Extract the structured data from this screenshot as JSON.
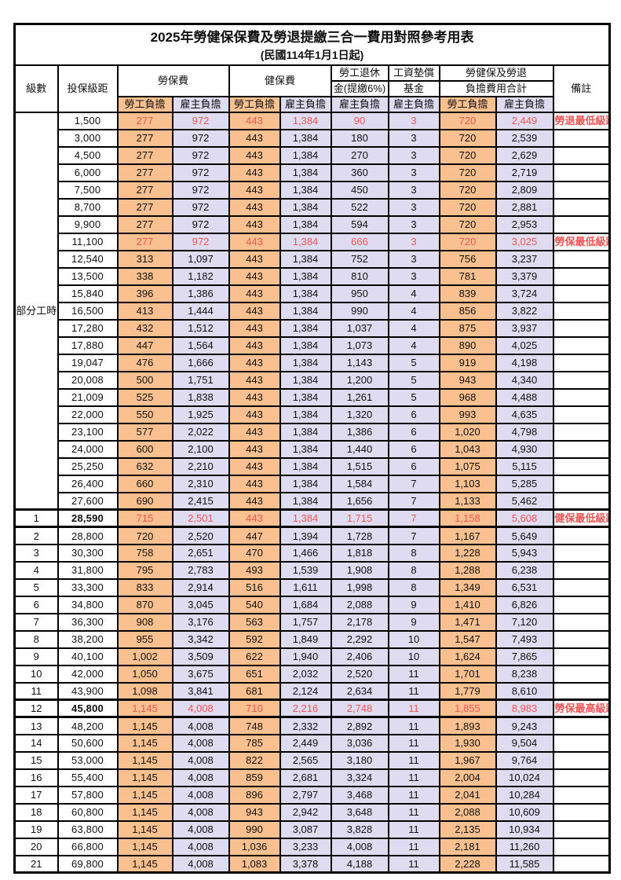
{
  "title": "2025年勞健保保費及勞退提繳三合一費用對照參考用表",
  "subtitle": "(民國114年1月1日起)",
  "colors": {
    "employee_bg": "#FAC090",
    "employer_bg": "#DFDBF0",
    "highlight_text": "#F25555",
    "grid": "#000000"
  },
  "header": {
    "level": "級數",
    "bracket": "投保級距",
    "labor_fee": "勞保費",
    "health_fee": "健保費",
    "pension_line1": "勞工退休",
    "pension_line2": "金(提繳6%)",
    "wage_fund_line1": "工資墊償",
    "wage_fund_line2": "基金",
    "total_line1": "勞健保及勞退",
    "total_line2": "負擔費用合計",
    "remark": "備註",
    "employee_share": "勞工負擔",
    "employer_share": "雇主負擔"
  },
  "part_time": {
    "label": "部分工時",
    "row_span": 23
  },
  "column_share_types": [
    "emp",
    "er",
    "emp",
    "er",
    "er",
    "er",
    "emp",
    "er"
  ],
  "rows": [
    {
      "lv": "",
      "amt": "1,500",
      "c": [
        "277",
        "972",
        "443",
        "1,384",
        "90",
        "3",
        "720",
        "2,449"
      ],
      "note": "勞退最低級距",
      "hl": true,
      "em": false
    },
    {
      "lv": "",
      "amt": "3,000",
      "c": [
        "277",
        "972",
        "443",
        "1,384",
        "180",
        "3",
        "720",
        "2,539"
      ],
      "note": "",
      "hl": false,
      "em": false
    },
    {
      "lv": "",
      "amt": "4,500",
      "c": [
        "277",
        "972",
        "443",
        "1,384",
        "270",
        "3",
        "720",
        "2,629"
      ],
      "note": "",
      "hl": false,
      "em": false
    },
    {
      "lv": "",
      "amt": "6,000",
      "c": [
        "277",
        "972",
        "443",
        "1,384",
        "360",
        "3",
        "720",
        "2,719"
      ],
      "note": "",
      "hl": false,
      "em": false
    },
    {
      "lv": "",
      "amt": "7,500",
      "c": [
        "277",
        "972",
        "443",
        "1,384",
        "450",
        "3",
        "720",
        "2,809"
      ],
      "note": "",
      "hl": false,
      "em": false
    },
    {
      "lv": "",
      "amt": "8,700",
      "c": [
        "277",
        "972",
        "443",
        "1,384",
        "522",
        "3",
        "720",
        "2,881"
      ],
      "note": "",
      "hl": false,
      "em": false
    },
    {
      "lv": "",
      "amt": "9,900",
      "c": [
        "277",
        "972",
        "443",
        "1,384",
        "594",
        "3",
        "720",
        "2,953"
      ],
      "note": "",
      "hl": false,
      "em": false
    },
    {
      "lv": "",
      "amt": "11,100",
      "c": [
        "277",
        "972",
        "443",
        "1,384",
        "666",
        "3",
        "720",
        "3,025"
      ],
      "note": "勞保最低級距",
      "hl": true,
      "em": false
    },
    {
      "lv": "",
      "amt": "12,540",
      "c": [
        "313",
        "1,097",
        "443",
        "1,384",
        "752",
        "3",
        "756",
        "3,237"
      ],
      "note": "",
      "hl": false,
      "em": false
    },
    {
      "lv": "",
      "amt": "13,500",
      "c": [
        "338",
        "1,182",
        "443",
        "1,384",
        "810",
        "3",
        "781",
        "3,379"
      ],
      "note": "",
      "hl": false,
      "em": false
    },
    {
      "lv": "",
      "amt": "15,840",
      "c": [
        "396",
        "1,386",
        "443",
        "1,384",
        "950",
        "4",
        "839",
        "3,724"
      ],
      "note": "",
      "hl": false,
      "em": false
    },
    {
      "lv": "",
      "amt": "16,500",
      "c": [
        "413",
        "1,444",
        "443",
        "1,384",
        "990",
        "4",
        "856",
        "3,822"
      ],
      "note": "",
      "hl": false,
      "em": false
    },
    {
      "lv": "",
      "amt": "17,280",
      "c": [
        "432",
        "1,512",
        "443",
        "1,384",
        "1,037",
        "4",
        "875",
        "3,937"
      ],
      "note": "",
      "hl": false,
      "em": false
    },
    {
      "lv": "",
      "amt": "17,880",
      "c": [
        "447",
        "1,564",
        "443",
        "1,384",
        "1,073",
        "4",
        "890",
        "4,025"
      ],
      "note": "",
      "hl": false,
      "em": false
    },
    {
      "lv": "",
      "amt": "19,047",
      "c": [
        "476",
        "1,666",
        "443",
        "1,384",
        "1,143",
        "5",
        "919",
        "4,198"
      ],
      "note": "",
      "hl": false,
      "em": false
    },
    {
      "lv": "",
      "amt": "20,008",
      "c": [
        "500",
        "1,751",
        "443",
        "1,384",
        "1,200",
        "5",
        "943",
        "4,340"
      ],
      "note": "",
      "hl": false,
      "em": false
    },
    {
      "lv": "",
      "amt": "21,009",
      "c": [
        "525",
        "1,838",
        "443",
        "1,384",
        "1,261",
        "5",
        "968",
        "4,488"
      ],
      "note": "",
      "hl": false,
      "em": false
    },
    {
      "lv": "",
      "amt": "22,000",
      "c": [
        "550",
        "1,925",
        "443",
        "1,384",
        "1,320",
        "6",
        "993",
        "4,635"
      ],
      "note": "",
      "hl": false,
      "em": false
    },
    {
      "lv": "",
      "amt": "23,100",
      "c": [
        "577",
        "2,022",
        "443",
        "1,384",
        "1,386",
        "6",
        "1,020",
        "4,798"
      ],
      "note": "",
      "hl": false,
      "em": false
    },
    {
      "lv": "",
      "amt": "24,000",
      "c": [
        "600",
        "2,100",
        "443",
        "1,384",
        "1,440",
        "6",
        "1,043",
        "4,930"
      ],
      "note": "",
      "hl": false,
      "em": false
    },
    {
      "lv": "",
      "amt": "25,250",
      "c": [
        "632",
        "2,210",
        "443",
        "1,384",
        "1,515",
        "6",
        "1,075",
        "5,115"
      ],
      "note": "",
      "hl": false,
      "em": false
    },
    {
      "lv": "",
      "amt": "26,400",
      "c": [
        "660",
        "2,310",
        "443",
        "1,384",
        "1,584",
        "7",
        "1,103",
        "5,285"
      ],
      "note": "",
      "hl": false,
      "em": false
    },
    {
      "lv": "",
      "amt": "27,600",
      "c": [
        "690",
        "2,415",
        "443",
        "1,384",
        "1,656",
        "7",
        "1,133",
        "5,462"
      ],
      "note": "",
      "hl": false,
      "em": false
    },
    {
      "lv": "1",
      "amt": "28,590",
      "c": [
        "715",
        "2,501",
        "443",
        "1,384",
        "1,715",
        "7",
        "1,158",
        "5,608"
      ],
      "note": "健保最低級距",
      "hl": true,
      "em": true
    },
    {
      "lv": "2",
      "amt": "28,800",
      "c": [
        "720",
        "2,520",
        "447",
        "1,394",
        "1,728",
        "7",
        "1,167",
        "5,649"
      ],
      "note": "",
      "hl": false,
      "em": false
    },
    {
      "lv": "3",
      "amt": "30,300",
      "c": [
        "758",
        "2,651",
        "470",
        "1,466",
        "1,818",
        "8",
        "1,228",
        "5,943"
      ],
      "note": "",
      "hl": false,
      "em": false
    },
    {
      "lv": "4",
      "amt": "31,800",
      "c": [
        "795",
        "2,783",
        "493",
        "1,539",
        "1,908",
        "8",
        "1,288",
        "6,238"
      ],
      "note": "",
      "hl": false,
      "em": false
    },
    {
      "lv": "5",
      "amt": "33,300",
      "c": [
        "833",
        "2,914",
        "516",
        "1,611",
        "1,998",
        "8",
        "1,349",
        "6,531"
      ],
      "note": "",
      "hl": false,
      "em": false
    },
    {
      "lv": "6",
      "amt": "34,800",
      "c": [
        "870",
        "3,045",
        "540",
        "1,684",
        "2,088",
        "9",
        "1,410",
        "6,826"
      ],
      "note": "",
      "hl": false,
      "em": false
    },
    {
      "lv": "7",
      "amt": "36,300",
      "c": [
        "908",
        "3,176",
        "563",
        "1,757",
        "2,178",
        "9",
        "1,471",
        "7,120"
      ],
      "note": "",
      "hl": false,
      "em": false
    },
    {
      "lv": "8",
      "amt": "38,200",
      "c": [
        "955",
        "3,342",
        "592",
        "1,849",
        "2,292",
        "10",
        "1,547",
        "7,493"
      ],
      "note": "",
      "hl": false,
      "em": false
    },
    {
      "lv": "9",
      "amt": "40,100",
      "c": [
        "1,002",
        "3,509",
        "622",
        "1,940",
        "2,406",
        "10",
        "1,624",
        "7,865"
      ],
      "note": "",
      "hl": false,
      "em": false
    },
    {
      "lv": "10",
      "amt": "42,000",
      "c": [
        "1,050",
        "3,675",
        "651",
        "2,032",
        "2,520",
        "11",
        "1,701",
        "8,238"
      ],
      "note": "",
      "hl": false,
      "em": false
    },
    {
      "lv": "11",
      "amt": "43,900",
      "c": [
        "1,098",
        "3,841",
        "681",
        "2,124",
        "2,634",
        "11",
        "1,779",
        "8,610"
      ],
      "note": "",
      "hl": false,
      "em": false
    },
    {
      "lv": "12",
      "amt": "45,800",
      "c": [
        "1,145",
        "4,008",
        "710",
        "2,216",
        "2,748",
        "11",
        "1,855",
        "8,983"
      ],
      "note": "勞保最高級距",
      "hl": true,
      "em": true
    },
    {
      "lv": "13",
      "amt": "48,200",
      "c": [
        "1,145",
        "4,008",
        "748",
        "2,332",
        "2,892",
        "11",
        "1,893",
        "9,243"
      ],
      "note": "",
      "hl": false,
      "em": false
    },
    {
      "lv": "14",
      "amt": "50,600",
      "c": [
        "1,145",
        "4,008",
        "785",
        "2,449",
        "3,036",
        "11",
        "1,930",
        "9,504"
      ],
      "note": "",
      "hl": false,
      "em": false
    },
    {
      "lv": "15",
      "amt": "53,000",
      "c": [
        "1,145",
        "4,008",
        "822",
        "2,565",
        "3,180",
        "11",
        "1,967",
        "9,764"
      ],
      "note": "",
      "hl": false,
      "em": false
    },
    {
      "lv": "16",
      "amt": "55,400",
      "c": [
        "1,145",
        "4,008",
        "859",
        "2,681",
        "3,324",
        "11",
        "2,004",
        "10,024"
      ],
      "note": "",
      "hl": false,
      "em": false
    },
    {
      "lv": "17",
      "amt": "57,800",
      "c": [
        "1,145",
        "4,008",
        "896",
        "2,797",
        "3,468",
        "11",
        "2,041",
        "10,284"
      ],
      "note": "",
      "hl": false,
      "em": false
    },
    {
      "lv": "18",
      "amt": "60,800",
      "c": [
        "1,145",
        "4,008",
        "943",
        "2,942",
        "3,648",
        "11",
        "2,088",
        "10,609"
      ],
      "note": "",
      "hl": false,
      "em": false
    },
    {
      "lv": "19",
      "amt": "63,800",
      "c": [
        "1,145",
        "4,008",
        "990",
        "3,087",
        "3,828",
        "11",
        "2,135",
        "10,934"
      ],
      "note": "",
      "hl": false,
      "em": false
    },
    {
      "lv": "20",
      "amt": "66,800",
      "c": [
        "1,145",
        "4,008",
        "1,036",
        "3,233",
        "4,008",
        "11",
        "2,181",
        "11,260"
      ],
      "note": "",
      "hl": false,
      "em": false
    },
    {
      "lv": "21",
      "amt": "69,800",
      "c": [
        "1,145",
        "4,008",
        "1,083",
        "3,378",
        "4,188",
        "11",
        "2,228",
        "11,585"
      ],
      "note": "",
      "hl": false,
      "em": false
    }
  ]
}
